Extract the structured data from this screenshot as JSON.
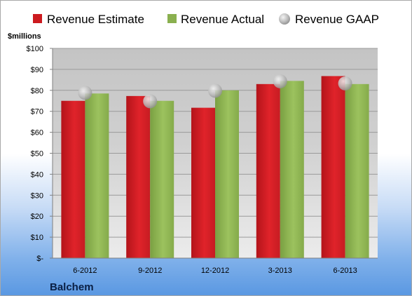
{
  "chart_data": {
    "type": "bar",
    "company": "Balchem",
    "unit_label": "$millions",
    "categories": [
      "6-2012",
      "9-2012",
      "12-2012",
      "3-2013",
      "6-2013"
    ],
    "series": [
      {
        "name": "Revenue Estimate",
        "kind": "bar",
        "color": "#cc1a1f",
        "values": [
          75.0,
          77.3,
          71.7,
          83.0,
          86.8
        ]
      },
      {
        "name": "Revenue Actual",
        "kind": "bar",
        "color": "#8ab04f",
        "values": [
          78.5,
          75.0,
          80.0,
          84.5,
          83.0
        ]
      },
      {
        "name": "Revenue GAAP",
        "kind": "marker",
        "color": "#c8c8c8",
        "values": [
          78.8,
          74.8,
          79.8,
          84.3,
          83.3
        ]
      }
    ],
    "ylim": [
      0,
      100
    ],
    "yticks": [
      0,
      10,
      20,
      30,
      40,
      50,
      60,
      70,
      80,
      90,
      100
    ],
    "ytick_labels": [
      "$-",
      "$10",
      "$20",
      "$30",
      "$40",
      "$50",
      "$60",
      "$70",
      "$80",
      "$90",
      "$100"
    ],
    "legend_position": "top",
    "grid": true
  }
}
